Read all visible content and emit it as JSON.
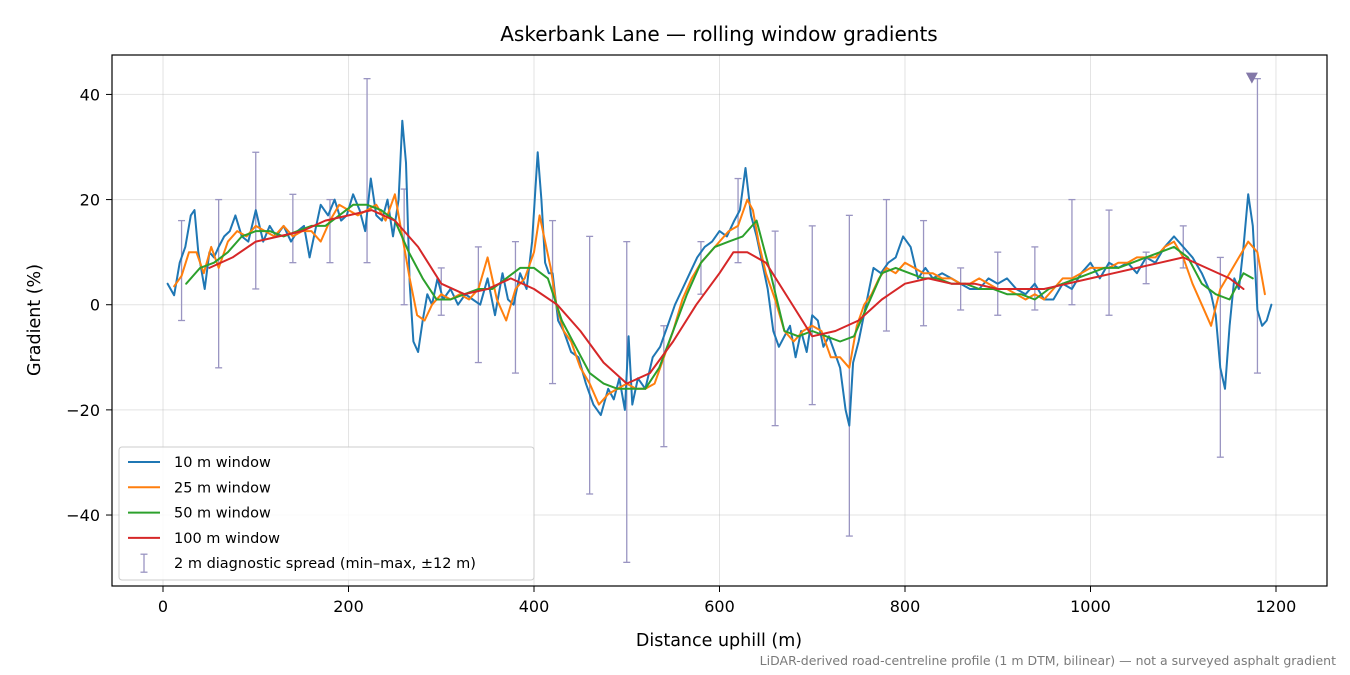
{
  "chart_data": {
    "type": "line",
    "title": "Askerbank Lane — rolling window gradients",
    "xlabel": "Distance uphill (m)",
    "ylabel": "Gradient (%)",
    "footnote": "LiDAR-derived road-centreline profile (1 m DTM, bilinear) — not a surveyed asphalt gradient",
    "xlim": [
      -55,
      1255
    ],
    "ylim": [
      -53.5,
      47.5
    ],
    "xticks": [
      0,
      200,
      400,
      600,
      800,
      1000,
      1200
    ],
    "xtick_labels": [
      "0",
      "200",
      "400",
      "600",
      "800",
      "1000",
      "1200"
    ],
    "yticks": [
      -40,
      -20,
      0,
      20,
      40
    ],
    "ytick_labels": [
      "−40",
      "−20",
      "0",
      "20",
      "40"
    ],
    "grid": true,
    "legend_position": "lower-left",
    "series": [
      {
        "name": "10 m window",
        "color": "#1f77b4",
        "x": [
          5,
          12,
          18,
          24,
          30,
          34,
          38,
          45,
          50,
          55,
          60,
          66,
          72,
          78,
          85,
          92,
          100,
          108,
          115,
          122,
          130,
          138,
          145,
          152,
          158,
          164,
          170,
          178,
          185,
          192,
          198,
          205,
          212,
          218,
          224,
          230,
          236,
          242,
          248,
          254,
          258,
          262,
          266,
          270,
          275,
          280,
          285,
          290,
          296,
          302,
          310,
          318,
          326,
          334,
          342,
          350,
          358,
          366,
          372,
          378,
          385,
          392,
          398,
          404,
          408,
          412,
          416,
          420,
          426,
          432,
          440,
          448,
          456,
          464,
          472,
          480,
          486,
          492,
          498,
          502,
          506,
          512,
          520,
          528,
          536,
          544,
          552,
          560,
          568,
          576,
          584,
          592,
          600,
          608,
          616,
          622,
          628,
          634,
          640,
          646,
          652,
          658,
          664,
          670,
          676,
          682,
          688,
          694,
          700,
          706,
          712,
          718,
          724,
          730,
          736,
          740,
          744,
          750,
          758,
          766,
          774,
          782,
          790,
          798,
          806,
          814,
          822,
          830,
          840,
          850,
          860,
          870,
          880,
          890,
          900,
          910,
          920,
          930,
          940,
          950,
          960,
          970,
          980,
          990,
          1000,
          1010,
          1020,
          1030,
          1040,
          1050,
          1060,
          1070,
          1080,
          1090,
          1100,
          1110,
          1120,
          1130,
          1135,
          1140,
          1145,
          1150,
          1155,
          1160,
          1165,
          1170,
          1175,
          1180,
          1185,
          1190,
          1195
        ],
        "y": [
          4,
          1.8,
          8,
          11,
          17,
          18,
          10,
          3,
          10,
          9,
          11,
          13,
          14,
          17,
          13,
          12,
          18,
          12,
          15,
          13,
          15,
          12,
          14,
          15,
          9,
          14,
          19,
          17,
          20,
          16,
          17,
          21,
          18,
          14,
          24,
          17,
          16,
          20,
          13,
          20,
          35,
          27,
          4,
          -7,
          -9,
          -3,
          2,
          0,
          5,
          1,
          3,
          0,
          2,
          1,
          0,
          5,
          -2,
          6,
          1,
          0,
          6,
          3,
          12,
          29,
          20,
          8,
          6,
          6,
          -3,
          -5,
          -9,
          -10,
          -15,
          -19,
          -21,
          -16,
          -18,
          -14,
          -20,
          -6,
          -19,
          -14,
          -16,
          -10,
          -8,
          -4,
          0,
          3,
          6,
          9,
          11,
          12,
          14,
          13,
          16,
          18,
          26,
          17,
          13,
          8,
          3,
          -5,
          -8,
          -6,
          -4,
          -10,
          -5,
          -9,
          -2,
          -3,
          -8,
          -6,
          -9,
          -12,
          -20,
          -23,
          -11,
          -7,
          0,
          7,
          6,
          8,
          9,
          13,
          11,
          5,
          7,
          5,
          6,
          5,
          4,
          3,
          3,
          5,
          4,
          5,
          3,
          2,
          4,
          1,
          1,
          4,
          3,
          6,
          8,
          5,
          8,
          7,
          8,
          6,
          9,
          8,
          11,
          13,
          11,
          9,
          6,
          2,
          -2,
          -12,
          -16,
          -4,
          5,
          3,
          11,
          21,
          15,
          -1,
          -4,
          -3,
          0
        ]
      },
      {
        "name": "25 m window",
        "color": "#ff7f0e",
        "x": [
          12,
          20,
          28,
          36,
          44,
          52,
          60,
          70,
          80,
          90,
          100,
          110,
          120,
          130,
          140,
          150,
          160,
          170,
          180,
          190,
          200,
          210,
          220,
          230,
          240,
          250,
          258,
          266,
          274,
          282,
          290,
          300,
          310,
          320,
          330,
          340,
          350,
          360,
          370,
          380,
          390,
          400,
          406,
          412,
          418,
          424,
          432,
          440,
          450,
          460,
          470,
          480,
          490,
          500,
          510,
          520,
          530,
          540,
          550,
          560,
          570,
          580,
          590,
          600,
          610,
          620,
          630,
          636,
          642,
          650,
          660,
          670,
          680,
          690,
          700,
          710,
          720,
          730,
          740,
          748,
          756,
          764,
          772,
          780,
          790,
          800,
          810,
          820,
          830,
          840,
          850,
          860,
          870,
          880,
          890,
          900,
          910,
          920,
          930,
          940,
          950,
          960,
          970,
          980,
          990,
          1000,
          1010,
          1020,
          1030,
          1040,
          1050,
          1060,
          1070,
          1080,
          1090,
          1100,
          1110,
          1120,
          1130,
          1140,
          1150,
          1160,
          1170,
          1180,
          1188
        ],
        "y": [
          3.5,
          5.5,
          10,
          10,
          6,
          11,
          7,
          12,
          14,
          13,
          15,
          14,
          13,
          15,
          13,
          14,
          14,
          12,
          16,
          19,
          18,
          17,
          18,
          19,
          16,
          21,
          13,
          5,
          -2,
          -3,
          0,
          2,
          1,
          2,
          1,
          3,
          9,
          1,
          -3,
          3,
          5,
          10,
          17,
          12,
          7,
          0,
          -5,
          -7,
          -12,
          -15,
          -19,
          -17,
          -16,
          -15,
          -16,
          -16,
          -15,
          -10,
          -5,
          1,
          5,
          8,
          10,
          12,
          14,
          15,
          20,
          18,
          12,
          6,
          1,
          -5,
          -7,
          -5,
          -4,
          -5,
          -10,
          -10,
          -12,
          -4,
          0,
          2,
          5,
          7,
          6,
          8,
          7,
          6,
          6,
          5,
          5,
          4,
          4,
          5,
          4,
          3,
          3,
          2,
          1,
          2,
          1,
          3,
          5,
          5,
          6,
          7,
          7,
          7,
          8,
          8,
          9,
          9,
          9,
          11,
          12,
          9,
          4,
          0,
          -4,
          3,
          6,
          9,
          12,
          10,
          2
        ]
      },
      {
        "name": "50 m window",
        "color": "#2ca02c",
        "x": [
          25,
          40,
          55,
          70,
          85,
          100,
          115,
          130,
          145,
          160,
          175,
          190,
          205,
          220,
          235,
          250,
          265,
          280,
          295,
          310,
          325,
          340,
          355,
          370,
          385,
          400,
          415,
          430,
          445,
          460,
          475,
          490,
          505,
          520,
          535,
          550,
          565,
          580,
          595,
          610,
          625,
          640,
          655,
          670,
          685,
          700,
          715,
          730,
          745,
          760,
          775,
          790,
          805,
          820,
          835,
          850,
          865,
          880,
          895,
          910,
          925,
          940,
          955,
          970,
          985,
          1000,
          1015,
          1030,
          1045,
          1060,
          1075,
          1090,
          1105,
          1120,
          1135,
          1150,
          1165,
          1175
        ],
        "y": [
          4,
          7,
          8,
          10,
          13,
          14,
          14,
          13,
          14,
          15,
          15,
          17,
          19,
          19,
          18,
          16,
          10,
          5,
          1,
          1,
          2,
          3,
          3,
          5,
          7,
          7,
          5,
          -3,
          -8,
          -13,
          -15,
          -16,
          -16,
          -16,
          -12,
          -5,
          2,
          8,
          11,
          12,
          13,
          16,
          6,
          -5,
          -6,
          -5,
          -6,
          -7,
          -6,
          0,
          6,
          7,
          6,
          5,
          5,
          4,
          4,
          3,
          3,
          2,
          2,
          1,
          3,
          4,
          5,
          6,
          7,
          7,
          8,
          9,
          10,
          11,
          9,
          4,
          2,
          1,
          6,
          5
        ]
      },
      {
        "name": "100 m window",
        "color": "#d62728",
        "x": [
          50,
          75,
          100,
          125,
          150,
          175,
          200,
          225,
          250,
          275,
          300,
          325,
          350,
          375,
          400,
          425,
          450,
          475,
          500,
          525,
          550,
          575,
          600,
          615,
          630,
          650,
          675,
          700,
          725,
          750,
          775,
          800,
          825,
          850,
          875,
          900,
          925,
          950,
          975,
          1000,
          1025,
          1050,
          1075,
          1100,
          1125,
          1150,
          1165
        ],
        "y": [
          7,
          9,
          12,
          13,
          14,
          16,
          17,
          18,
          16,
          11,
          4,
          2,
          3,
          5,
          3,
          0,
          -5,
          -11,
          -15,
          -13,
          -7,
          0,
          6,
          10,
          10,
          8,
          1,
          -6,
          -5,
          -3,
          1,
          4,
          5,
          4,
          4,
          3,
          3,
          3,
          4,
          5,
          6,
          7,
          8,
          9,
          7,
          5,
          3
        ]
      }
    ],
    "errorbars": {
      "name": "2 m diagnostic spread (min–max, ±12 m)",
      "color": "#9a95c2",
      "x": [
        20,
        60,
        100,
        140,
        180,
        220,
        260,
        300,
        340,
        380,
        420,
        460,
        500,
        540,
        580,
        620,
        660,
        700,
        740,
        780,
        820,
        860,
        900,
        940,
        980,
        1020,
        1060,
        1100,
        1140,
        1180
      ],
      "low": [
        -3,
        -12,
        3,
        8,
        8,
        8,
        0,
        -2,
        -11,
        -13,
        -15,
        -36,
        -49,
        -27,
        2,
        8,
        -23,
        -19,
        -44,
        -5,
        -4,
        -1,
        -2,
        -1,
        0,
        -2,
        4,
        7,
        -29,
        -13
      ],
      "high": [
        16,
        20,
        29,
        21,
        20,
        43,
        22,
        7,
        11,
        12,
        16,
        13,
        12,
        -4,
        12,
        24,
        14,
        15,
        17,
        20,
        16,
        7,
        10,
        11,
        20,
        18,
        10,
        15,
        9,
        43
      ]
    },
    "markers": [
      {
        "x": 1174,
        "y": 43,
        "shape": "triangle-down",
        "color": "#8378a8"
      }
    ]
  }
}
